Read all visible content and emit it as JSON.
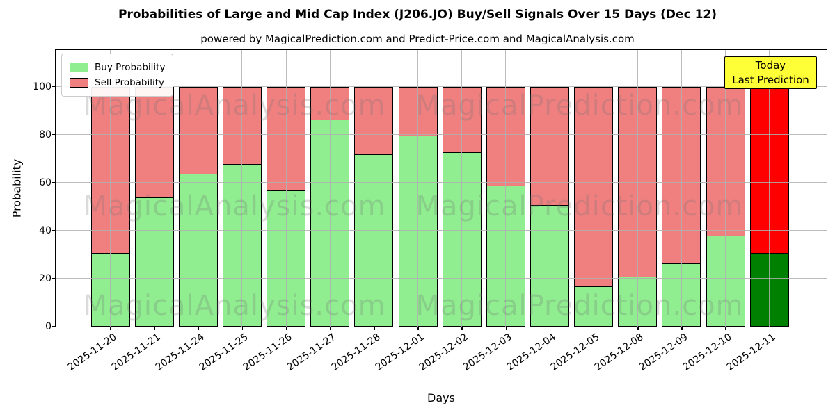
{
  "chart_data": {
    "type": "bar",
    "stacked": true,
    "title": "Probabilities of Large and Mid Cap Index (J206.JO) Buy/Sell Signals Over 15 Days (Dec 12)",
    "subtitle": "powered by MagicalPrediction.com and Predict-Price.com and MagicalAnalysis.com",
    "xlabel": "Days",
    "ylabel": "Probability",
    "categories": [
      "2025-11-20",
      "2025-11-21",
      "2025-11-24",
      "2025-11-25",
      "2025-11-26",
      "2025-11-27",
      "2025-11-28",
      "2025-12-01",
      "2025-12-02",
      "2025-12-03",
      "2025-12-04",
      "2025-12-05",
      "2025-12-08",
      "2025-12-09",
      "2025-12-10",
      "2025-12-11"
    ],
    "series": [
      {
        "name": "Buy Probability",
        "color": "#90ee90",
        "values": [
          31,
          54,
          64,
          68,
          57,
          86.5,
          72,
          80,
          73,
          59,
          51,
          17,
          21,
          26.5,
          38,
          31
        ]
      },
      {
        "name": "Sell Probability",
        "color": "#f08080",
        "values": [
          69,
          46,
          36,
          32,
          43,
          13.5,
          28,
          20,
          27,
          41,
          49,
          83,
          79,
          73.5,
          62,
          69
        ]
      }
    ],
    "today": {
      "index": 15,
      "buy_color": "#008000",
      "sell_color": "#ff0000"
    },
    "ylim": [
      0,
      115
    ],
    "yticks": [
      0,
      20,
      40,
      60,
      80,
      100
    ],
    "grid": true,
    "threshold_line_y": 110,
    "legend_position": "upper-left",
    "bar_edge_color": "#000000"
  },
  "annotation": {
    "line1": "Today",
    "line2": "Last Prediction"
  },
  "watermarks": {
    "left": "MagicalAnalysis.com",
    "right": "MagicalPrediction.com"
  }
}
